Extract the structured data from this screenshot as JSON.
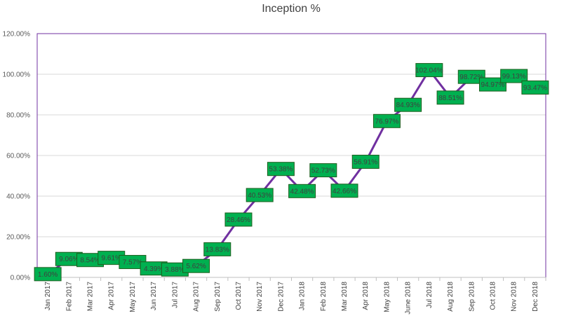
{
  "chart_data": {
    "type": "line",
    "title": "Inception %",
    "xlabel": "",
    "ylabel": "",
    "ylim": [
      0,
      120
    ],
    "yticks": [
      "0.00%",
      "20.00%",
      "40.00%",
      "60.00%",
      "80.00%",
      "100.00%",
      "120.00%"
    ],
    "grid": true,
    "categories": [
      "Jan 2017",
      "Feb 2017",
      "Mar 2017",
      "Apr 2017",
      "May 2017",
      "Jun 2017",
      "Jul 2017",
      "Aug 2017",
      "Sep 2017",
      "Oct 2017",
      "Nov 2017",
      "Dec 2017",
      "Jan 2018",
      "Feb 2018",
      "Mar 2018",
      "Apr 2018",
      "May 2018",
      "June 2018",
      "Jul 2018",
      "Aug 2018",
      "Sep 2018",
      "Oct 2018",
      "Nov 2018",
      "Dec 2018"
    ],
    "series": [
      {
        "values": [
          1.6,
          9.06,
          8.54,
          9.61,
          7.57,
          4.39,
          3.88,
          5.62,
          13.83,
          28.46,
          40.53,
          53.38,
          42.48,
          52.73,
          42.66,
          56.91,
          76.97,
          84.93,
          102.04,
          88.51,
          98.72,
          94.97,
          99.13,
          93.47
        ],
        "labels": [
          "1.60%",
          "9.06%",
          "8.54%",
          "9.61%",
          "7.57%",
          "4.39%",
          "3.88%",
          "5.62%",
          "13.83%",
          "28.46%",
          "40.53%",
          "53.38%",
          "42.48%",
          "52.73%",
          "42.66%",
          "56.91%",
          "76.97%",
          "84.93%",
          "102.04%",
          "88.51%",
          "98.72%",
          "94.97%",
          "99.13%",
          "93.47%"
        ]
      }
    ],
    "colors": {
      "line": "#7030A0",
      "label_fill": "#00B050",
      "label_border": "#1E5E1E",
      "plot_border": "#7030A0",
      "grid": "#D9D9D9"
    }
  }
}
